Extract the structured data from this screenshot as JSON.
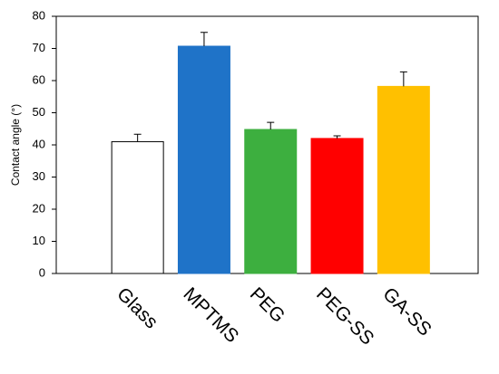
{
  "chart_data": {
    "type": "bar",
    "ylabel": "Contact angle (°)",
    "categories": [
      "Glass",
      "MPTMS",
      "PEG",
      "PEG-SS",
      "GA-SS"
    ],
    "values": [
      41,
      70.7,
      44.8,
      42,
      58.2
    ],
    "errors": [
      2.3,
      4.3,
      2.2,
      0.8,
      4.5
    ],
    "colors": [
      "#ffffff",
      "#1f73c8",
      "#3daf3f",
      "#ff0000",
      "#ffc000"
    ],
    "edgecolors": [
      "#000000",
      "#1f73c8",
      "#3daf3f",
      "#ff0000",
      "#ffc000"
    ],
    "ylim": [
      0,
      80
    ],
    "yticks": [
      0,
      10,
      20,
      30,
      40,
      50,
      60,
      70,
      80
    ],
    "grid": false
  }
}
